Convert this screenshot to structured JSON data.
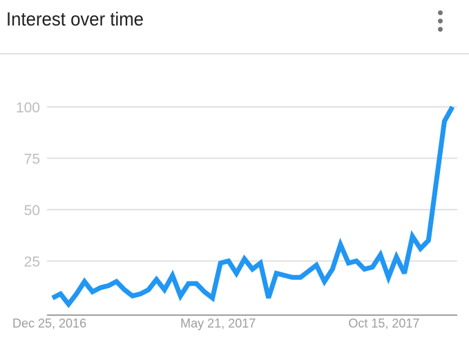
{
  "header": {
    "title": "Interest over time",
    "menu_icon": "more-vert-icon"
  },
  "chart_data": {
    "type": "line",
    "title": "Interest over time",
    "x_tick_labels": [
      "Dec 25, 2016",
      "May 21, 2017",
      "Oct 15, 2017"
    ],
    "x_tick_dates": [
      "2016-12-25",
      "2017-05-21",
      "2017-10-15"
    ],
    "y_ticks": [
      25,
      50,
      75,
      100
    ],
    "ylim": [
      0,
      100
    ],
    "grid": true,
    "line_color": "#2196f3",
    "x": [
      "2016-12-25",
      "2017-01-01",
      "2017-01-08",
      "2017-01-15",
      "2017-01-22",
      "2017-01-29",
      "2017-02-05",
      "2017-02-12",
      "2017-02-19",
      "2017-02-26",
      "2017-03-05",
      "2017-03-12",
      "2017-03-19",
      "2017-03-26",
      "2017-04-02",
      "2017-04-09",
      "2017-04-16",
      "2017-04-23",
      "2017-04-30",
      "2017-05-07",
      "2017-05-14",
      "2017-05-21",
      "2017-05-28",
      "2017-06-04",
      "2017-06-11",
      "2017-06-18",
      "2017-06-25",
      "2017-07-02",
      "2017-07-09",
      "2017-07-16",
      "2017-07-23",
      "2017-07-30",
      "2017-08-06",
      "2017-08-13",
      "2017-08-20",
      "2017-08-27",
      "2017-09-03",
      "2017-09-10",
      "2017-09-17",
      "2017-09-24",
      "2017-10-01",
      "2017-10-08",
      "2017-10-15",
      "2017-10-22",
      "2017-10-29",
      "2017-11-05",
      "2017-11-12",
      "2017-11-19",
      "2017-11-26",
      "2017-12-03",
      "2017-12-10"
    ],
    "values": [
      7,
      9,
      4,
      9,
      15,
      10,
      12,
      13,
      15,
      11,
      8,
      9,
      11,
      16,
      11,
      18,
      8,
      14,
      14,
      10,
      7,
      24,
      25,
      19,
      26,
      21,
      24,
      7,
      19,
      18,
      17,
      17,
      20,
      23,
      15,
      21,
      33,
      24,
      25,
      21,
      22,
      28,
      17,
      27,
      19,
      37,
      31,
      35,
      64,
      93,
      100
    ]
  }
}
